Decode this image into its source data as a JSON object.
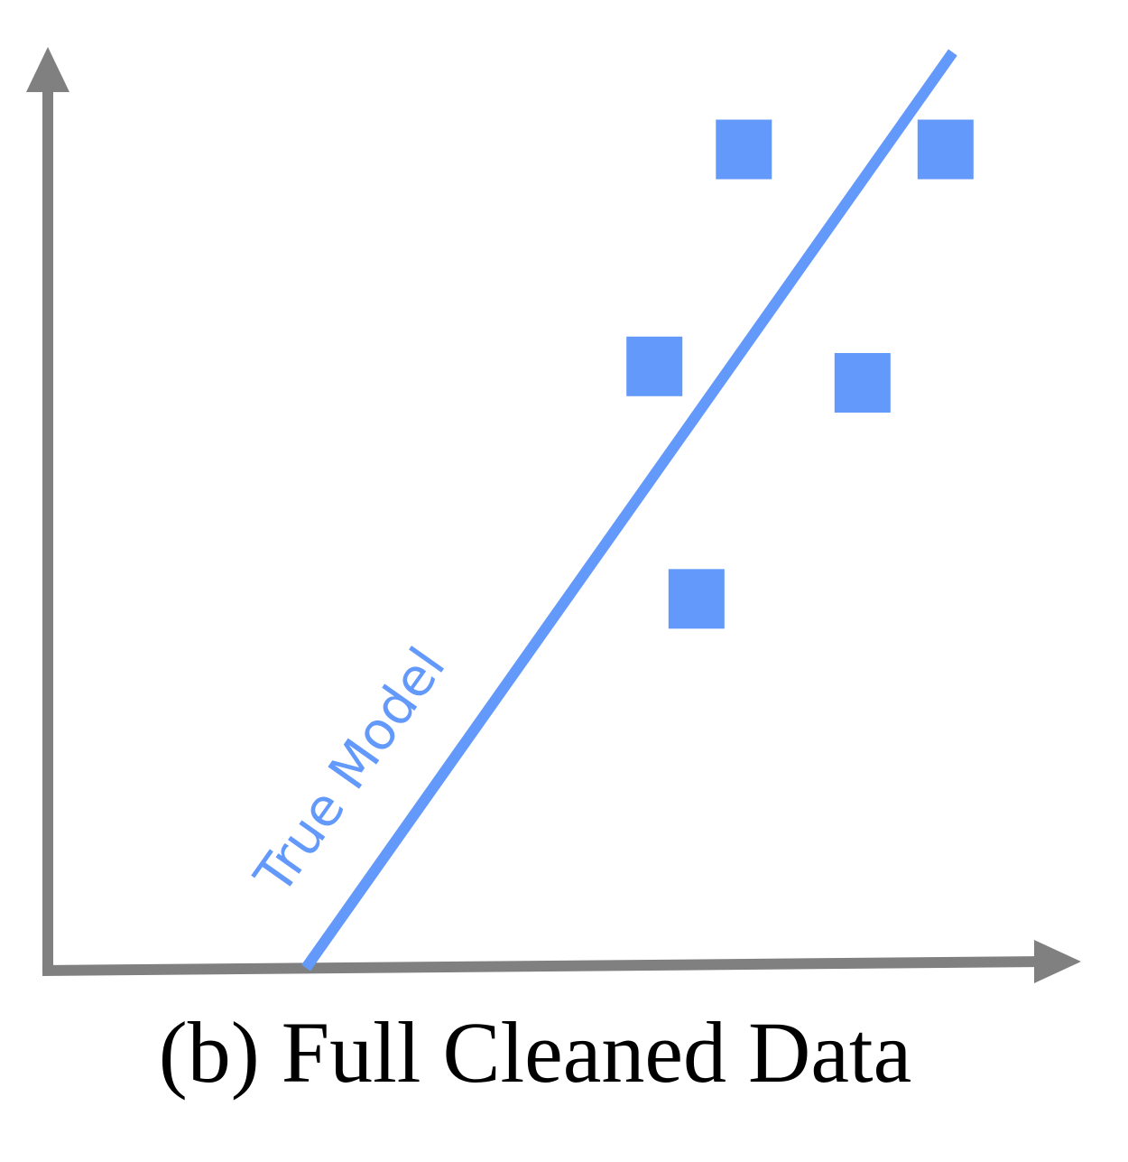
{
  "figure": {
    "caption": "(b) Full Cleaned Data",
    "line_label": "True Model",
    "colors": {
      "axis": "#808080",
      "model": "#6399fa",
      "points": "#6399fa",
      "caption": "#000000"
    },
    "points": [
      {
        "x": 0.757,
        "y": 0.896
      },
      {
        "x": 0.978,
        "y": 0.896
      },
      {
        "x": 0.659,
        "y": 0.659
      },
      {
        "x": 0.887,
        "y": 0.641
      },
      {
        "x": 0.705,
        "y": 0.405
      }
    ],
    "model_line": {
      "start": {
        "x": 0.277,
        "y": 0.0
      },
      "end": {
        "x": 0.986,
        "y": 1.0
      }
    }
  }
}
